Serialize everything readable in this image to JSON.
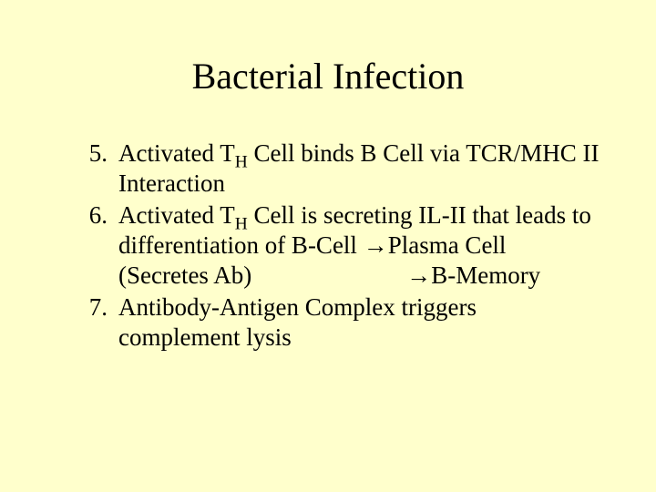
{
  "background_color": "#ffffcc",
  "text_color": "#000000",
  "font_family": "Times New Roman",
  "title": {
    "text": "Bacterial Infection",
    "fontsize": 40
  },
  "list": {
    "start_number": 5,
    "fontsize": 27,
    "items": [
      {
        "pre1": "Activated T",
        "sub1": "H",
        "post1": " Cell binds B Cell via TCR/MHC II Interaction"
      },
      {
        "pre1": "Activated T",
        "sub1": "H",
        "mid1": " Cell is secreting IL-II that leads to differentiation of B-Cell ",
        "arrow1": "→",
        "mid2": "Plasma Cell (Secretes Ab)",
        "arrow2": "→",
        "post2": "B-Memory"
      },
      {
        "text": "Antibody-Antigen Complex triggers complement lysis"
      }
    ]
  }
}
